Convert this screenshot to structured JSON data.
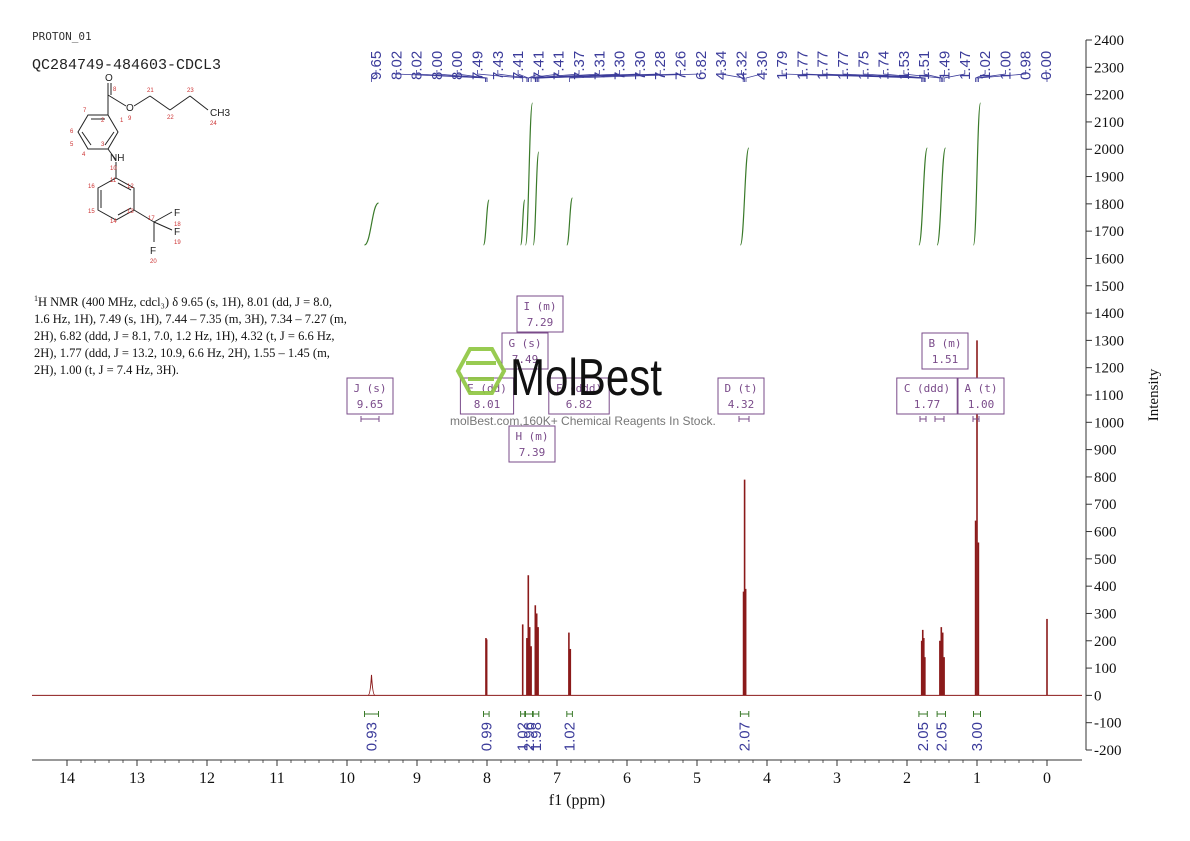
{
  "header": {
    "experiment": "PROTON_01",
    "sample": "QC284749-484603-CDCL3"
  },
  "molecule_labels": {
    "o_carbonyl": "O",
    "c8": "8",
    "o_ester": "O",
    "o9": "9",
    "n": "NH",
    "n10": "10",
    "ch3": "CH3",
    "f1": "F",
    "f2": "F",
    "f3": "F",
    "c1": "1",
    "c2": "2",
    "c3": "3",
    "c4": "4",
    "c5": "5",
    "c6": "6",
    "c7": "7",
    "c11": "11",
    "c12": "12",
    "c13": "13",
    "c14": "14",
    "c15": "15",
    "c16": "16",
    "c17": "17",
    "c18": "18",
    "c19": "19",
    "c20": "20",
    "c21": "21",
    "c22": "22",
    "c23": "23",
    "c24": "24"
  },
  "nmr_description": {
    "prefix": "H NMR (400 MHz, cdcl",
    "lines": [
      "H NMR (400 MHz, cdcl₃) δ 9.65 (s, 1H), 8.01 (dd, J = 8.0,",
      "1.6 Hz, 1H), 7.49 (s, 1H), 7.44 – 7.35 (m, 3H), 7.34 – 7.27 (m,",
      "2H), 6.82 (ddd, J = 8.1, 7.0, 1.2 Hz, 1H), 4.32 (t, J = 6.6 Hz,",
      "2H), 1.77 (ddd, J = 13.2, 10.9, 6.6 Hz, 2H), 1.55 – 1.45 (m,",
      "2H), 1.00 (t, J = 7.4 Hz, 3H)."
    ]
  },
  "watermark": {
    "brand": "MolBest",
    "tagline": "molBest.com,160K+ Chemical Reagents In Stock."
  },
  "colors": {
    "spectrum": "#8b1a1a",
    "integral": "#3a7a2a",
    "peak_label": "#3b3b9a",
    "multiplet_box": "#7a4b8a",
    "axis": "#333333"
  },
  "chart_data": {
    "type": "line",
    "xlabel": "f1 (ppm)",
    "ylabel": "Intensity",
    "xlim": [
      14.5,
      -0.5
    ],
    "ylim": [
      -200,
      2400
    ],
    "x_ticks": [
      "14",
      "13",
      "12",
      "11",
      "10",
      "9",
      "8",
      "7",
      "6",
      "5",
      "4",
      "3",
      "2",
      "1",
      "0"
    ],
    "y_ticks": [
      "2400",
      "2300",
      "2200",
      "2100",
      "2000",
      "1900",
      "1800",
      "1700",
      "1600",
      "1500",
      "1400",
      "1300",
      "1200",
      "1100",
      "1000",
      "900",
      "800",
      "700",
      "600",
      "500",
      "400",
      "300",
      "200",
      "100",
      "0",
      "-100",
      "-200"
    ],
    "peak_labels": [
      "9.65",
      "8.02",
      "8.02",
      "8.00",
      "8.00",
      "7.49",
      "7.43",
      "7.41",
      "7.41",
      "7.41",
      "7.37",
      "7.31",
      "7.30",
      "7.30",
      "7.28",
      "7.26",
      "6.82",
      "4.34",
      "4.32",
      "4.30",
      "1.79",
      "1.77",
      "1.77",
      "1.77",
      "1.75",
      "1.74",
      "1.53",
      "1.51",
      "1.49",
      "1.47",
      "1.02",
      "1.00",
      "0.98",
      "0.00"
    ],
    "peaks": [
      {
        "x": 9.65,
        "h": 75,
        "w": 0.05
      },
      {
        "x": 8.015,
        "h": 210,
        "w": 0.004
      },
      {
        "x": 8.005,
        "h": 205,
        "w": 0.004
      },
      {
        "x": 7.49,
        "h": 260,
        "w": 0.004
      },
      {
        "x": 7.43,
        "h": 210,
        "w": 0.004
      },
      {
        "x": 7.41,
        "h": 440,
        "w": 0.004
      },
      {
        "x": 7.39,
        "h": 250,
        "w": 0.004
      },
      {
        "x": 7.37,
        "h": 180,
        "w": 0.004
      },
      {
        "x": 7.31,
        "h": 330,
        "w": 0.004
      },
      {
        "x": 7.29,
        "h": 300,
        "w": 0.004
      },
      {
        "x": 7.27,
        "h": 250,
        "w": 0.004
      },
      {
        "x": 6.83,
        "h": 230,
        "w": 0.004
      },
      {
        "x": 6.81,
        "h": 170,
        "w": 0.004
      },
      {
        "x": 4.335,
        "h": 380,
        "w": 0.003
      },
      {
        "x": 4.32,
        "h": 790,
        "w": 0.003
      },
      {
        "x": 4.305,
        "h": 390,
        "w": 0.003
      },
      {
        "x": 1.79,
        "h": 200,
        "w": 0.003
      },
      {
        "x": 1.775,
        "h": 240,
        "w": 0.003
      },
      {
        "x": 1.76,
        "h": 210,
        "w": 0.003
      },
      {
        "x": 1.745,
        "h": 140,
        "w": 0.003
      },
      {
        "x": 1.53,
        "h": 200,
        "w": 0.003
      },
      {
        "x": 1.51,
        "h": 250,
        "w": 0.003
      },
      {
        "x": 1.49,
        "h": 230,
        "w": 0.003
      },
      {
        "x": 1.47,
        "h": 140,
        "w": 0.003
      },
      {
        "x": 1.02,
        "h": 640,
        "w": 0.003
      },
      {
        "x": 1.0,
        "h": 1300,
        "w": 0.003
      },
      {
        "x": 0.98,
        "h": 560,
        "w": 0.003
      },
      {
        "x": 0.0,
        "h": 280,
        "w": 0.003
      }
    ],
    "multiplets": [
      {
        "letter": "J (s)",
        "value": "9.65",
        "x": 9.65
      },
      {
        "letter": "E (dd)",
        "value": "8.01",
        "x": 7.85
      },
      {
        "letter": "G (s)",
        "value": "7.49",
        "x": 7.49
      },
      {
        "letter": "I (m)",
        "value": "7.29",
        "x": 7.29
      },
      {
        "letter": "H (m)",
        "value": "7.39",
        "x": 7.39
      },
      {
        "letter": "F (ddd)",
        "value": "6.82",
        "x": 6.82
      },
      {
        "letter": "D (t)",
        "value": "4.32",
        "x": 4.32
      },
      {
        "letter": "C (ddd)",
        "value": "1.77",
        "x": 1.77
      },
      {
        "letter": "B (m)",
        "value": "1.51",
        "x": 1.51
      },
      {
        "letter": "A (t)",
        "value": "1.00",
        "x": 1.0
      }
    ],
    "integrals": [
      {
        "value": "0.93",
        "from": 9.75,
        "to": 9.55
      },
      {
        "value": "0.99",
        "from": 8.05,
        "to": 7.97
      },
      {
        "value": "1.02",
        "from": 7.52,
        "to": 7.46
      },
      {
        "value": "2.96",
        "from": 7.45,
        "to": 7.35
      },
      {
        "value": "1.98",
        "from": 7.34,
        "to": 7.26
      },
      {
        "value": "1.02",
        "from": 6.86,
        "to": 6.78
      },
      {
        "value": "2.07",
        "from": 4.38,
        "to": 4.26
      },
      {
        "value": "2.05",
        "from": 1.83,
        "to": 1.71
      },
      {
        "value": "2.05",
        "from": 1.57,
        "to": 1.45
      },
      {
        "value": "3.00",
        "from": 1.05,
        "to": 0.95
      }
    ]
  }
}
